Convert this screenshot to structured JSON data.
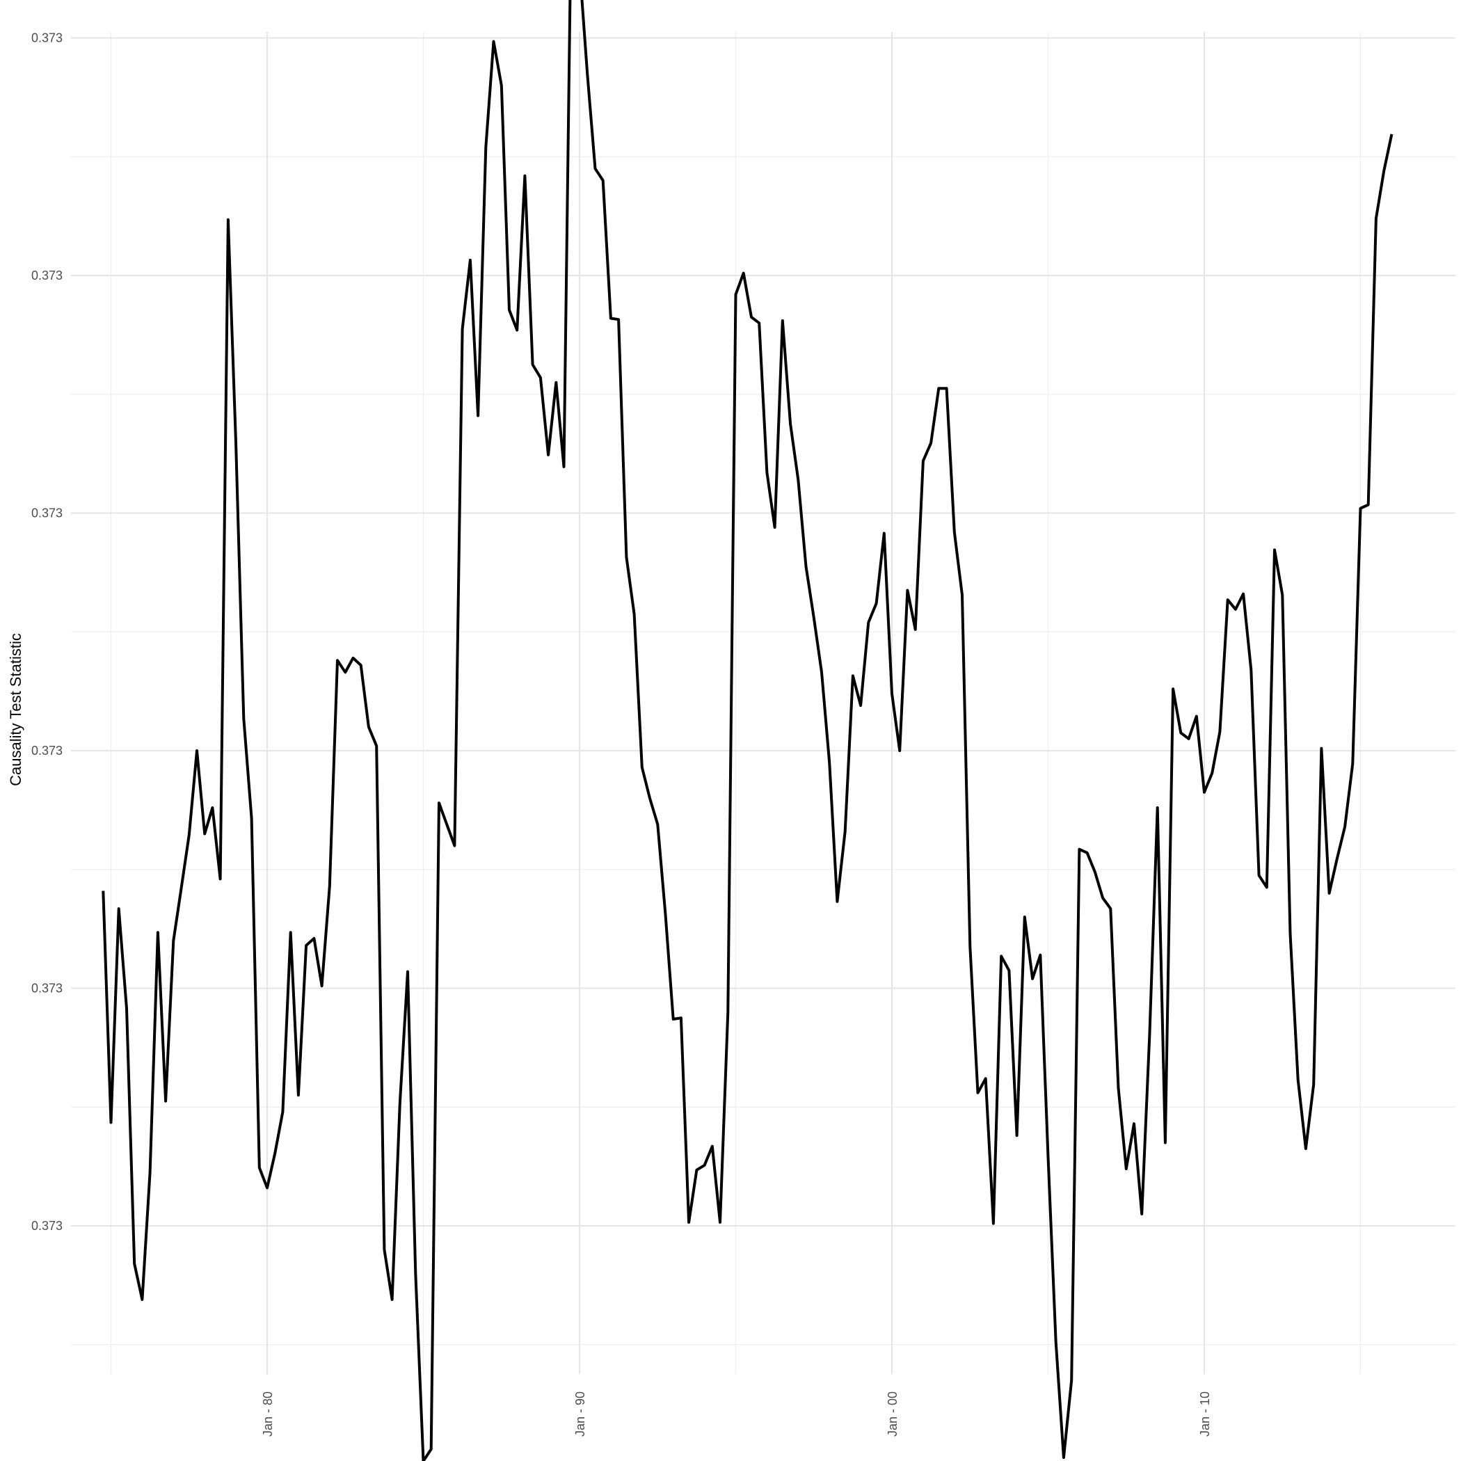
{
  "chart_data": {
    "type": "line",
    "title": "",
    "xlabel": "",
    "ylabel": "Causality Test Statistic",
    "x_ticks": [
      {
        "year": 1980,
        "label": "Jan - 80"
      },
      {
        "year": 1990,
        "label": "Jan - 90"
      },
      {
        "year": 2000,
        "label": "Jan - 00"
      },
      {
        "year": 2010,
        "label": "Jan - 10"
      }
    ],
    "x_range": [
      1974.0,
      2019.2
    ],
    "y_ticks": [
      {
        "value": 1,
        "label": "0.373"
      },
      {
        "value": 3,
        "label": "0.373"
      },
      {
        "value": 5,
        "label": "0.373"
      },
      {
        "value": 7,
        "label": "0.373"
      },
      {
        "value": 9,
        "label": "0.373"
      },
      {
        "value": 11,
        "label": "0.373"
      }
    ],
    "y_range": [
      -0.3,
      11.3
    ],
    "y_note": "y values are relative positions on the axis (the printed tick labels all read 0.373; the true differences are below the label precision)",
    "grid": true,
    "legend": "none",
    "colors": {
      "line": "#000000",
      "grid_major": "#e5e5e5",
      "grid_minor": "#f0f0f0",
      "background": "#ffffff"
    },
    "series": [
      {
        "points": [
          [
            1974.75,
            3.82
          ],
          [
            1975.0,
            1.87
          ],
          [
            1975.25,
            3.67
          ],
          [
            1975.5,
            2.83
          ],
          [
            1975.75,
            0.68
          ],
          [
            1976.0,
            0.38
          ],
          [
            1976.25,
            1.45
          ],
          [
            1976.5,
            3.47
          ],
          [
            1976.75,
            2.05
          ],
          [
            1977.0,
            3.4
          ],
          [
            1977.25,
            3.84
          ],
          [
            1977.5,
            4.29
          ],
          [
            1977.75,
            5.0
          ],
          [
            1978.0,
            4.3
          ],
          [
            1978.25,
            4.52
          ],
          [
            1978.5,
            3.92
          ],
          [
            1978.75,
            9.47
          ],
          [
            1979.0,
            7.58
          ],
          [
            1979.25,
            5.27
          ],
          [
            1979.5,
            4.43
          ],
          [
            1979.75,
            1.49
          ],
          [
            1980.0,
            1.32
          ],
          [
            1980.25,
            1.61
          ],
          [
            1980.5,
            1.96
          ],
          [
            1980.75,
            3.47
          ],
          [
            1981.0,
            2.1
          ],
          [
            1981.25,
            3.36
          ],
          [
            1981.5,
            3.42
          ],
          [
            1981.75,
            3.02
          ],
          [
            1982.0,
            3.86
          ],
          [
            1982.25,
            5.76
          ],
          [
            1982.5,
            5.66
          ],
          [
            1982.75,
            5.78
          ],
          [
            1983.0,
            5.72
          ],
          [
            1983.25,
            5.2
          ],
          [
            1983.5,
            5.04
          ],
          [
            1983.75,
            0.8
          ],
          [
            1984.0,
            0.38
          ],
          [
            1984.25,
            2.03
          ],
          [
            1984.5,
            3.14
          ],
          [
            1984.75,
            0.6
          ],
          [
            1985.0,
            -0.98
          ],
          [
            1985.25,
            -0.88
          ],
          [
            1985.5,
            4.56
          ],
          [
            1985.75,
            4.38
          ],
          [
            1986.0,
            4.2
          ],
          [
            1986.25,
            8.55
          ],
          [
            1986.5,
            9.13
          ],
          [
            1986.75,
            7.82
          ],
          [
            1987.0,
            10.08
          ],
          [
            1987.25,
            10.97
          ],
          [
            1987.5,
            10.6
          ],
          [
            1987.75,
            8.71
          ],
          [
            1988.0,
            8.54
          ],
          [
            1988.25,
            9.84
          ],
          [
            1988.5,
            8.25
          ],
          [
            1988.75,
            8.14
          ],
          [
            1989.0,
            7.49
          ],
          [
            1989.25,
            8.1
          ],
          [
            1989.5,
            7.39
          ],
          [
            1989.75,
            12.4
          ],
          [
            1990.0,
            11.6
          ],
          [
            1990.25,
            10.7
          ],
          [
            1990.5,
            9.9
          ],
          [
            1990.75,
            9.8
          ],
          [
            1991.0,
            8.64
          ],
          [
            1991.25,
            8.63
          ],
          [
            1991.5,
            6.63
          ],
          [
            1991.75,
            6.15
          ],
          [
            1992.0,
            4.86
          ],
          [
            1992.25,
            4.6
          ],
          [
            1992.5,
            4.38
          ],
          [
            1992.75,
            3.62
          ],
          [
            1993.0,
            2.74
          ],
          [
            1993.25,
            2.75
          ],
          [
            1993.5,
            1.03
          ],
          [
            1993.75,
            1.47
          ],
          [
            1994.0,
            1.51
          ],
          [
            1994.25,
            1.67
          ],
          [
            1994.5,
            1.03
          ],
          [
            1994.75,
            2.8
          ],
          [
            1995.0,
            8.84
          ],
          [
            1995.25,
            9.02
          ],
          [
            1995.5,
            8.65
          ],
          [
            1995.75,
            8.6
          ],
          [
            1996.0,
            7.34
          ],
          [
            1996.25,
            6.88
          ],
          [
            1996.5,
            8.62
          ],
          [
            1996.75,
            7.75
          ],
          [
            1997.0,
            7.28
          ],
          [
            1997.25,
            6.55
          ],
          [
            1997.5,
            6.12
          ],
          [
            1997.75,
            5.66
          ],
          [
            1998.0,
            4.9
          ],
          [
            1998.25,
            3.73
          ],
          [
            1998.5,
            4.32
          ],
          [
            1998.75,
            5.63
          ],
          [
            1999.0,
            5.38
          ],
          [
            1999.25,
            6.08
          ],
          [
            1999.5,
            6.24
          ],
          [
            1999.75,
            6.83
          ],
          [
            2000.0,
            5.48
          ],
          [
            2000.25,
            5.0
          ],
          [
            2000.5,
            6.35
          ],
          [
            2000.75,
            6.02
          ],
          [
            2001.0,
            7.44
          ],
          [
            2001.25,
            7.59
          ],
          [
            2001.5,
            8.05
          ],
          [
            2001.75,
            8.05
          ],
          [
            2002.0,
            6.84
          ],
          [
            2002.25,
            6.31
          ],
          [
            2002.5,
            3.35
          ],
          [
            2002.75,
            2.12
          ],
          [
            2003.0,
            2.24
          ],
          [
            2003.25,
            1.02
          ],
          [
            2003.5,
            3.27
          ],
          [
            2003.75,
            3.15
          ],
          [
            2004.0,
            1.76
          ],
          [
            2004.25,
            3.6
          ],
          [
            2004.5,
            3.08
          ],
          [
            2004.75,
            3.28
          ],
          [
            2005.0,
            1.58
          ],
          [
            2005.25,
            0.02
          ],
          [
            2005.5,
            -0.95
          ],
          [
            2005.75,
            -0.3
          ],
          [
            2006.0,
            4.17
          ],
          [
            2006.25,
            4.14
          ],
          [
            2006.5,
            3.98
          ],
          [
            2006.75,
            3.76
          ],
          [
            2007.0,
            3.67
          ],
          [
            2007.25,
            2.16
          ],
          [
            2007.5,
            1.48
          ],
          [
            2007.75,
            1.86
          ],
          [
            2008.0,
            1.1
          ],
          [
            2008.25,
            2.61
          ],
          [
            2008.5,
            4.52
          ],
          [
            2008.75,
            1.7
          ],
          [
            2009.0,
            5.52
          ],
          [
            2009.25,
            5.15
          ],
          [
            2009.5,
            5.1
          ],
          [
            2009.75,
            5.29
          ],
          [
            2010.0,
            4.65
          ],
          [
            2010.25,
            4.81
          ],
          [
            2010.5,
            5.16
          ],
          [
            2010.75,
            6.27
          ],
          [
            2011.0,
            6.19
          ],
          [
            2011.25,
            6.32
          ],
          [
            2011.5,
            5.68
          ],
          [
            2011.75,
            3.95
          ],
          [
            2012.0,
            3.85
          ],
          [
            2012.25,
            6.69
          ],
          [
            2012.5,
            6.31
          ],
          [
            2012.75,
            3.46
          ],
          [
            2013.0,
            2.23
          ],
          [
            2013.25,
            1.65
          ],
          [
            2013.5,
            2.19
          ],
          [
            2013.75,
            5.02
          ],
          [
            2014.0,
            3.8
          ],
          [
            2014.25,
            4.09
          ],
          [
            2014.5,
            4.36
          ],
          [
            2014.75,
            4.89
          ],
          [
            2015.0,
            7.04
          ],
          [
            2015.25,
            7.07
          ],
          [
            2015.5,
            9.48
          ],
          [
            2015.75,
            9.88
          ],
          [
            2016.0,
            10.19
          ]
        ]
      }
    ]
  }
}
